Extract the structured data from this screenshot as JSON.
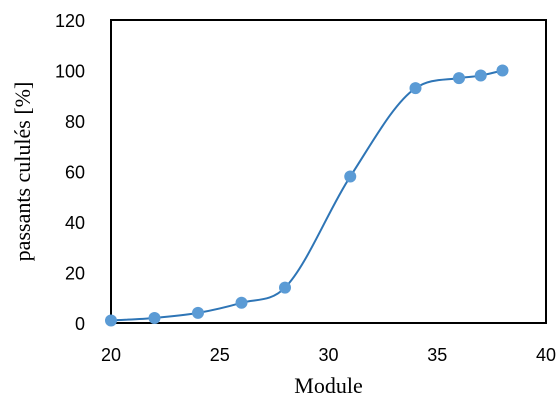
{
  "chart_data": {
    "type": "scatter",
    "title": "",
    "xlabel": "Module",
    "ylabel": "passants cululés [%]",
    "xlim": [
      20,
      40
    ],
    "ylim": [
      0,
      120
    ],
    "xticks": [
      20,
      25,
      30,
      35,
      40
    ],
    "yticks": [
      0,
      20,
      40,
      60,
      80,
      100,
      120
    ],
    "grid": false,
    "legend": "none",
    "series": [
      {
        "x": [
          20,
          22,
          24,
          26,
          28,
          31,
          34,
          36,
          37,
          38
        ],
        "y": [
          1,
          2,
          4,
          8,
          14,
          58,
          93,
          97,
          98,
          100
        ],
        "marker_color": "#5b9bd5",
        "line_color": "#2e75b6",
        "smooth": true
      }
    ]
  }
}
